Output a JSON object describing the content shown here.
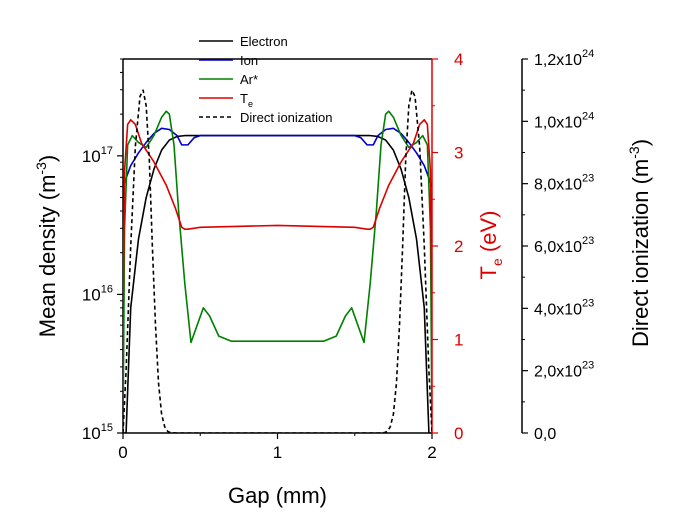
{
  "chart_data": {
    "type": "line",
    "xlabel": "Gap (mm)",
    "ylabel_left": "Mean density (m",
    "ylabel_left_sup": "-3",
    "ylabel_left_close": ")",
    "ylabel_mid": "T",
    "ylabel_mid_sub": "e",
    "ylabel_mid_unit": " (eV)",
    "ylabel_right": "Direct ionization (m",
    "ylabel_right_sup": "-3",
    "ylabel_right_close": ")",
    "xlim": [
      0,
      2
    ],
    "ylim_left_log": [
      1000000000000000.0,
      5e+17
    ],
    "ylim_mid": [
      0,
      4
    ],
    "ylim_right": [
      0,
      1.2e+24
    ],
    "x_ticks": [
      "0",
      "1",
      "2"
    ],
    "left_ticks": [
      {
        "base": "10",
        "exp": "15",
        "value": 1000000000000000.0
      },
      {
        "base": "10",
        "exp": "16",
        "value": 1e+16
      },
      {
        "base": "10",
        "exp": "17",
        "value": 1e+17
      }
    ],
    "mid_ticks": [
      "0",
      "1",
      "2",
      "3",
      "4"
    ],
    "right_ticks": [
      {
        "base": "0,0",
        "exp": "",
        "value": 0
      },
      {
        "base": "2,0x10",
        "exp": "23",
        "value": 2e+23
      },
      {
        "base": "4,0x10",
        "exp": "23",
        "value": 4e+23
      },
      {
        "base": "6,0x10",
        "exp": "23",
        "value": 6e+23
      },
      {
        "base": "8,0x10",
        "exp": "23",
        "value": 8e+23
      },
      {
        "base": "1,0x10",
        "exp": "24",
        "value": 1e+24
      },
      {
        "base": "1,2x10",
        "exp": "24",
        "value": 1.2e+24
      }
    ],
    "legend_placement": "top-center",
    "grid": false,
    "colors": {
      "electron": "#000000",
      "ion": "#0000cc",
      "ar": "#008000",
      "te": "#dd0000",
      "direct": "#000000",
      "mid_axis": "#dd0000"
    },
    "series": [
      {
        "name": "Electron",
        "axis": "left",
        "color": "#000000",
        "style": "solid",
        "x": [
          0.0,
          0.02,
          0.05,
          0.1,
          0.15,
          0.2,
          0.25,
          0.3,
          0.35,
          0.4,
          1.0,
          1.6,
          1.65,
          1.7,
          1.75,
          1.8,
          1.85,
          1.9,
          1.95,
          1.98,
          2.0
        ],
        "y": [
          1000000000000000.0,
          1000000000000000.0,
          8000000000000000.0,
          2.5e+16,
          5e+16,
          8e+16,
          1.1e+17,
          1.3e+17,
          1.38e+17,
          1.4e+17,
          1.4e+17,
          1.4e+17,
          1.38e+17,
          1.3e+17,
          1.1e+17,
          8e+16,
          5e+16,
          2.5e+16,
          8000000000000000.0,
          1000000000000000.0,
          1000000000000000.0
        ]
      },
      {
        "name": "Ion",
        "axis": "left",
        "color": "#0000cc",
        "style": "solid",
        "x": [
          0.0,
          0.05,
          0.1,
          0.15,
          0.2,
          0.25,
          0.3,
          0.35,
          0.38,
          0.42,
          0.46,
          0.5,
          1.0,
          1.5,
          1.54,
          1.58,
          1.62,
          1.65,
          1.7,
          1.75,
          1.8,
          1.85,
          1.9,
          1.95,
          2.0
        ],
        "y": [
          6e+16,
          8.5e+16,
          1.05e+17,
          1.25e+17,
          1.45e+17,
          1.58e+17,
          1.55e+17,
          1.4e+17,
          1.2e+17,
          1.2e+17,
          1.35e+17,
          1.4e+17,
          1.4e+17,
          1.4e+17,
          1.35e+17,
          1.2e+17,
          1.2e+17,
          1.4e+17,
          1.55e+17,
          1.58e+17,
          1.45e+17,
          1.25e+17,
          1.05e+17,
          8.5e+16,
          6e+16
        ]
      },
      {
        "name": "Ar*",
        "axis": "left",
        "color": "#008000",
        "style": "solid",
        "x": [
          0.0,
          0.01,
          0.03,
          0.06,
          0.1,
          0.15,
          0.2,
          0.25,
          0.28,
          0.3,
          0.33,
          0.36,
          0.4,
          0.44,
          0.48,
          0.52,
          0.56,
          0.62,
          0.7,
          1.0,
          1.3,
          1.38,
          1.44,
          1.48,
          1.52,
          1.56,
          1.6,
          1.64,
          1.67,
          1.7,
          1.72,
          1.75,
          1.8,
          1.85,
          1.9,
          1.94,
          1.97,
          1.99,
          2.0
        ],
        "y": [
          1000000000000000.0,
          3e+16,
          1.2e+17,
          1.4e+17,
          1.25e+17,
          1.15e+17,
          1.4e+17,
          1.9e+17,
          2.1e+17,
          2e+17,
          1.2e+17,
          4e+16,
          1.2e+16,
          4500000000000000.0,
          6000000000000000.0,
          8000000000000000.0,
          7000000000000000.0,
          5000000000000000.0,
          4600000000000000.0,
          4600000000000000.0,
          4600000000000000.0,
          5000000000000000.0,
          7000000000000000.0,
          8000000000000000.0,
          6000000000000000.0,
          4500000000000000.0,
          1.2e+16,
          4e+16,
          1.2e+17,
          2e+17,
          2.1e+17,
          1.9e+17,
          1.4e+17,
          1.15e+17,
          1.25e+17,
          1.4e+17,
          1.2e+17,
          3e+16,
          1000000000000000.0
        ]
      },
      {
        "name": "T",
        "sub": "e",
        "axis": "mid",
        "color": "#dd0000",
        "style": "solid",
        "x": [
          0.0,
          0.01,
          0.03,
          0.05,
          0.08,
          0.12,
          0.2,
          0.28,
          0.34,
          0.38,
          0.4,
          0.42,
          0.5,
          1.0,
          1.5,
          1.58,
          1.6,
          1.62,
          1.66,
          1.72,
          1.8,
          1.88,
          1.92,
          1.95,
          1.97,
          1.99,
          2.0
        ],
        "y": [
          1.2,
          2.8,
          3.3,
          3.35,
          3.3,
          3.1,
          2.9,
          2.65,
          2.4,
          2.2,
          2.18,
          2.18,
          2.2,
          2.22,
          2.2,
          2.18,
          2.18,
          2.2,
          2.4,
          2.65,
          2.9,
          3.1,
          3.3,
          3.35,
          3.3,
          2.8,
          1.2
        ]
      },
      {
        "name": "Direct ionization",
        "axis": "right",
        "color": "#000000",
        "style": "dashed",
        "x": [
          0.0,
          0.02,
          0.05,
          0.08,
          0.11,
          0.13,
          0.15,
          0.17,
          0.19,
          0.21,
          0.23,
          0.25,
          0.27,
          0.29,
          0.31,
          0.35,
          1.0,
          1.65,
          1.69,
          1.71,
          1.73,
          1.75,
          1.77,
          1.79,
          1.81,
          1.83,
          1.85,
          1.87,
          1.89,
          1.92,
          1.95,
          1.98,
          2.0
        ],
        "y": [
          0,
          2e+23,
          6e+23,
          9.2e+23,
          1.08e+24,
          1.1e+24,
          1.05e+24,
          8.8e+23,
          6e+23,
          3.5e+23,
          1.6e+23,
          6e+22,
          2e+22,
          5e+21,
          1e+21,
          0,
          0,
          0,
          1e+21,
          5e+21,
          2e+22,
          6e+22,
          1.6e+23,
          3.5e+23,
          6e+23,
          8.8e+23,
          1.05e+24,
          1.1e+24,
          1.08e+24,
          9.2e+23,
          6e+23,
          2e+23,
          0
        ]
      }
    ]
  }
}
